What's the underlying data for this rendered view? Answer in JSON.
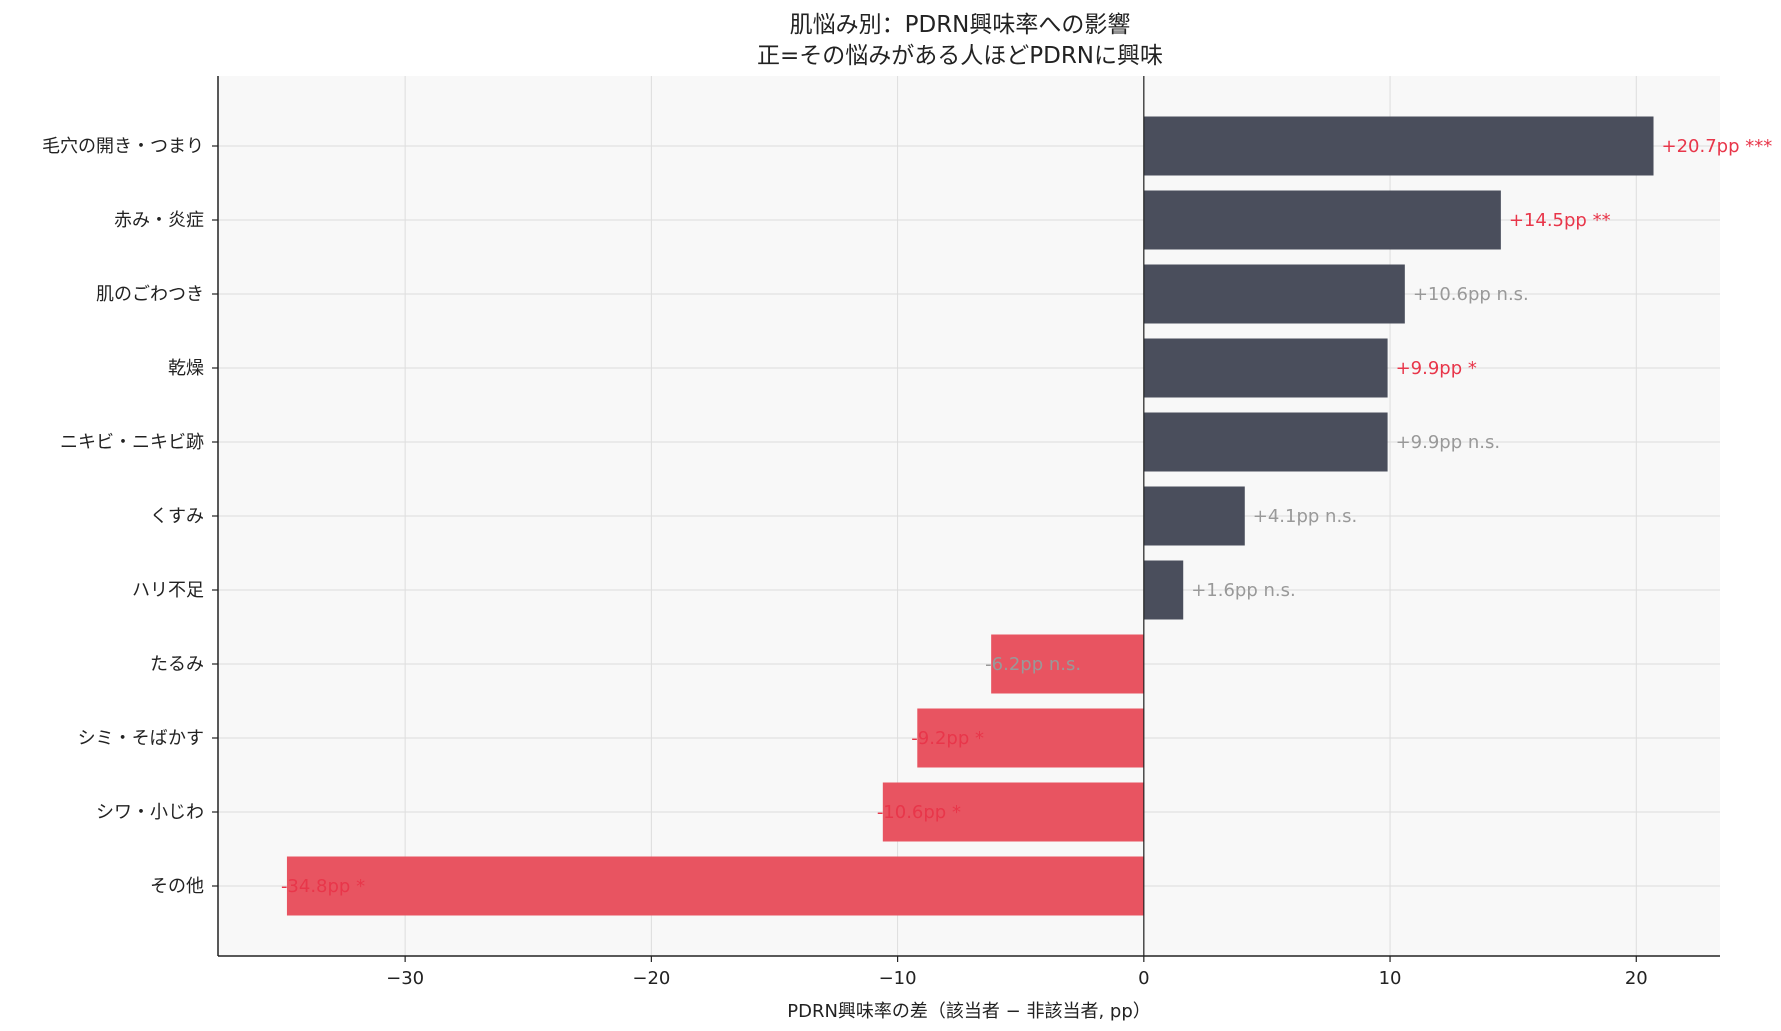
{
  "chart_data": {
    "type": "bar",
    "orientation": "horizontal",
    "title_line1": "肌悩み別：PDRN興味率への影響",
    "title_line2": "正=その悩みがある人ほどPDRNに興味",
    "xlabel": "PDRN興味率の差（該当者 − 非該当者, pp）",
    "ylabel": "",
    "xlim": [
      -37.6,
      23.4
    ],
    "xticks": [
      -30,
      -20,
      -10,
      0,
      10,
      20
    ],
    "xtick_labels": [
      "−30",
      "−20",
      "−10",
      "0",
      "10",
      "20"
    ],
    "grid": true,
    "categories": [
      "毛穴の開き・つまり",
      "赤み・炎症",
      "肌のごわつき",
      "乾燥",
      "ニキビ・ニキビ跡",
      "くすみ",
      "ハリ不足",
      "たるみ",
      "シミ・そばかす",
      "シワ・小じわ",
      "その他"
    ],
    "values": [
      20.7,
      14.5,
      10.6,
      9.9,
      9.9,
      4.1,
      1.6,
      -6.2,
      -9.2,
      -10.6,
      -34.8
    ],
    "labels": [
      "+20.7pp ***",
      "+14.5pp **",
      "+10.6pp n.s.",
      "+9.9pp *",
      "+9.9pp n.s.",
      "+4.1pp n.s.",
      "+1.6pp n.s.",
      "-6.2pp n.s.",
      "-9.2pp *",
      "-10.6pp *",
      "-34.8pp *"
    ],
    "significant": [
      true,
      true,
      false,
      true,
      false,
      false,
      false,
      false,
      true,
      true,
      true
    ],
    "colors": {
      "positive_bar": "#4a4e5c",
      "negative_bar": "#e85461",
      "significant_label": "#e8364a",
      "nonsignificant_label": "#999999",
      "plot_background": "#f8f8f8",
      "grid": "#dddddd",
      "zero_line": "#222222"
    }
  }
}
